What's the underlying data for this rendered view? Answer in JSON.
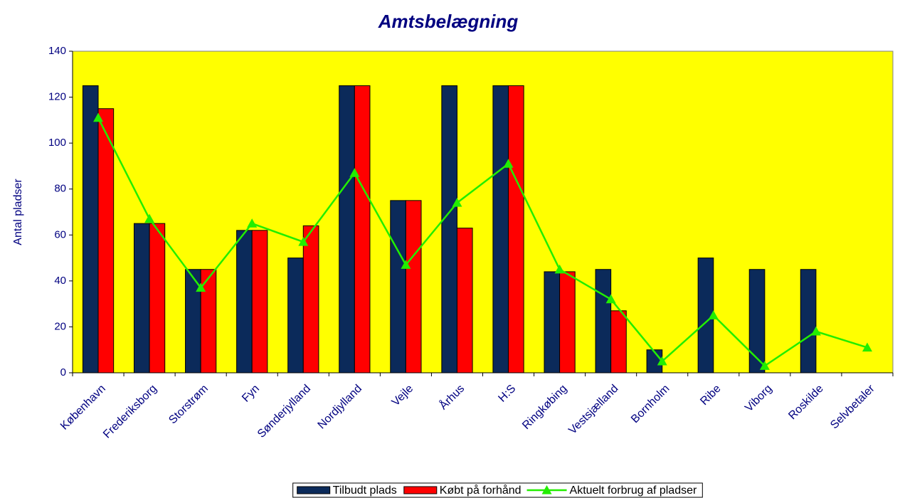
{
  "chart_data": {
    "type": "bar",
    "title": "Amtsbelægning",
    "y_label": "Antal pladser",
    "categories": [
      "København",
      "Frederiksborg",
      "Storstrøm",
      "Fyn",
      "Sønderjylland",
      "Nordjylland",
      "Vejle",
      "Århus",
      "H:S",
      "Ringkøbing",
      "Vestsjælland",
      "Bornholm",
      "Ribe",
      "Viborg",
      "Roskilde",
      "Selvbetaler"
    ],
    "series": [
      {
        "name": "Tilbudt plads",
        "type": "bar",
        "color": "#0b2a5a",
        "values": [
          125,
          65,
          45,
          62,
          50,
          125,
          75,
          125,
          125,
          44,
          45,
          10,
          50,
          45,
          45,
          null
        ]
      },
      {
        "name": "Købt på forhånd",
        "type": "bar",
        "color": "#ff0000",
        "values": [
          115,
          65,
          45,
          62,
          64,
          125,
          75,
          63,
          125,
          44,
          27,
          null,
          null,
          null,
          null,
          null
        ]
      },
      {
        "name": "Aktuelt forbrug af pladser",
        "type": "line",
        "color": "#22ee00",
        "values": [
          111,
          67,
          37,
          65,
          57,
          87,
          47,
          74,
          91,
          45,
          32,
          5,
          25,
          3,
          18,
          11
        ]
      }
    ],
    "ylim": [
      0,
      140
    ],
    "yticks": [
      0,
      20,
      40,
      60,
      80,
      100,
      120,
      140
    ],
    "plot_background": "#ffff00"
  }
}
